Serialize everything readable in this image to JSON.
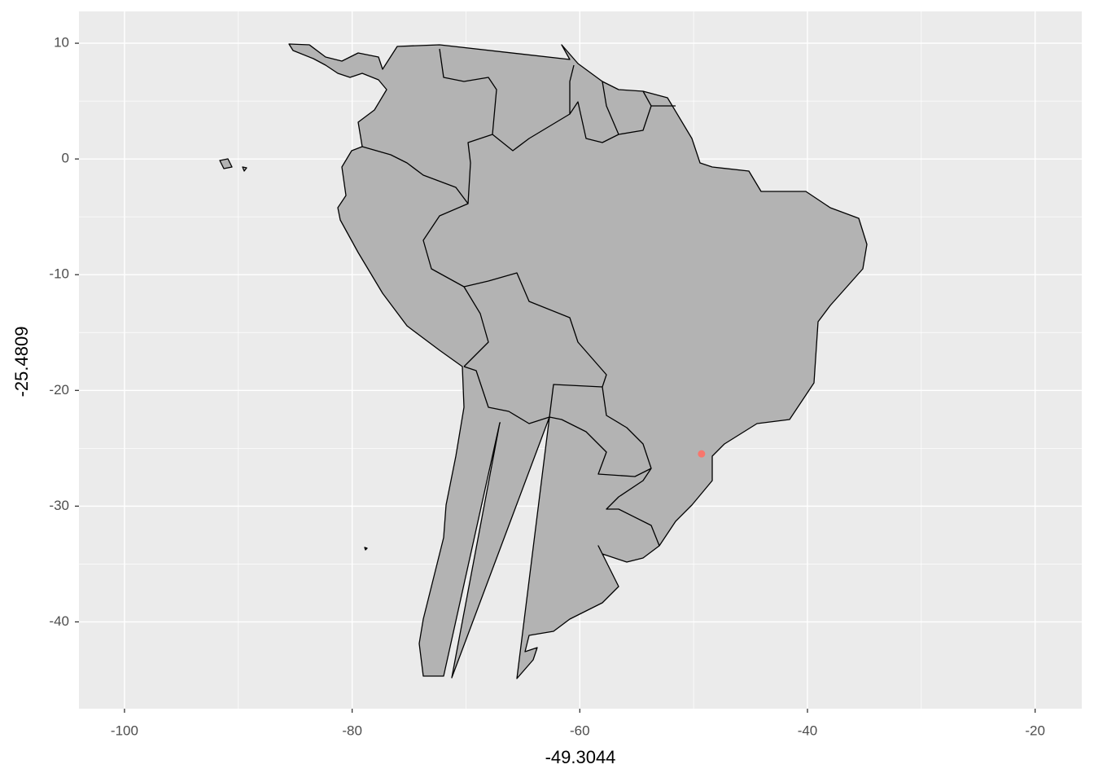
{
  "chart_data": {
    "type": "scatter",
    "x_label": "-49.3044",
    "y_label": "-25.4809",
    "x": [
      -49.3044
    ],
    "values": [
      -25.4809
    ],
    "color": "#F8766D",
    "xlim": [
      -104,
      -15.9
    ],
    "ylim": [
      -47.5,
      12.75
    ],
    "xticks": [
      -100,
      -80,
      -60,
      -40,
      -20
    ],
    "yticks": [
      10,
      0,
      -10,
      -20,
      -30,
      -40
    ],
    "grid": true
  }
}
